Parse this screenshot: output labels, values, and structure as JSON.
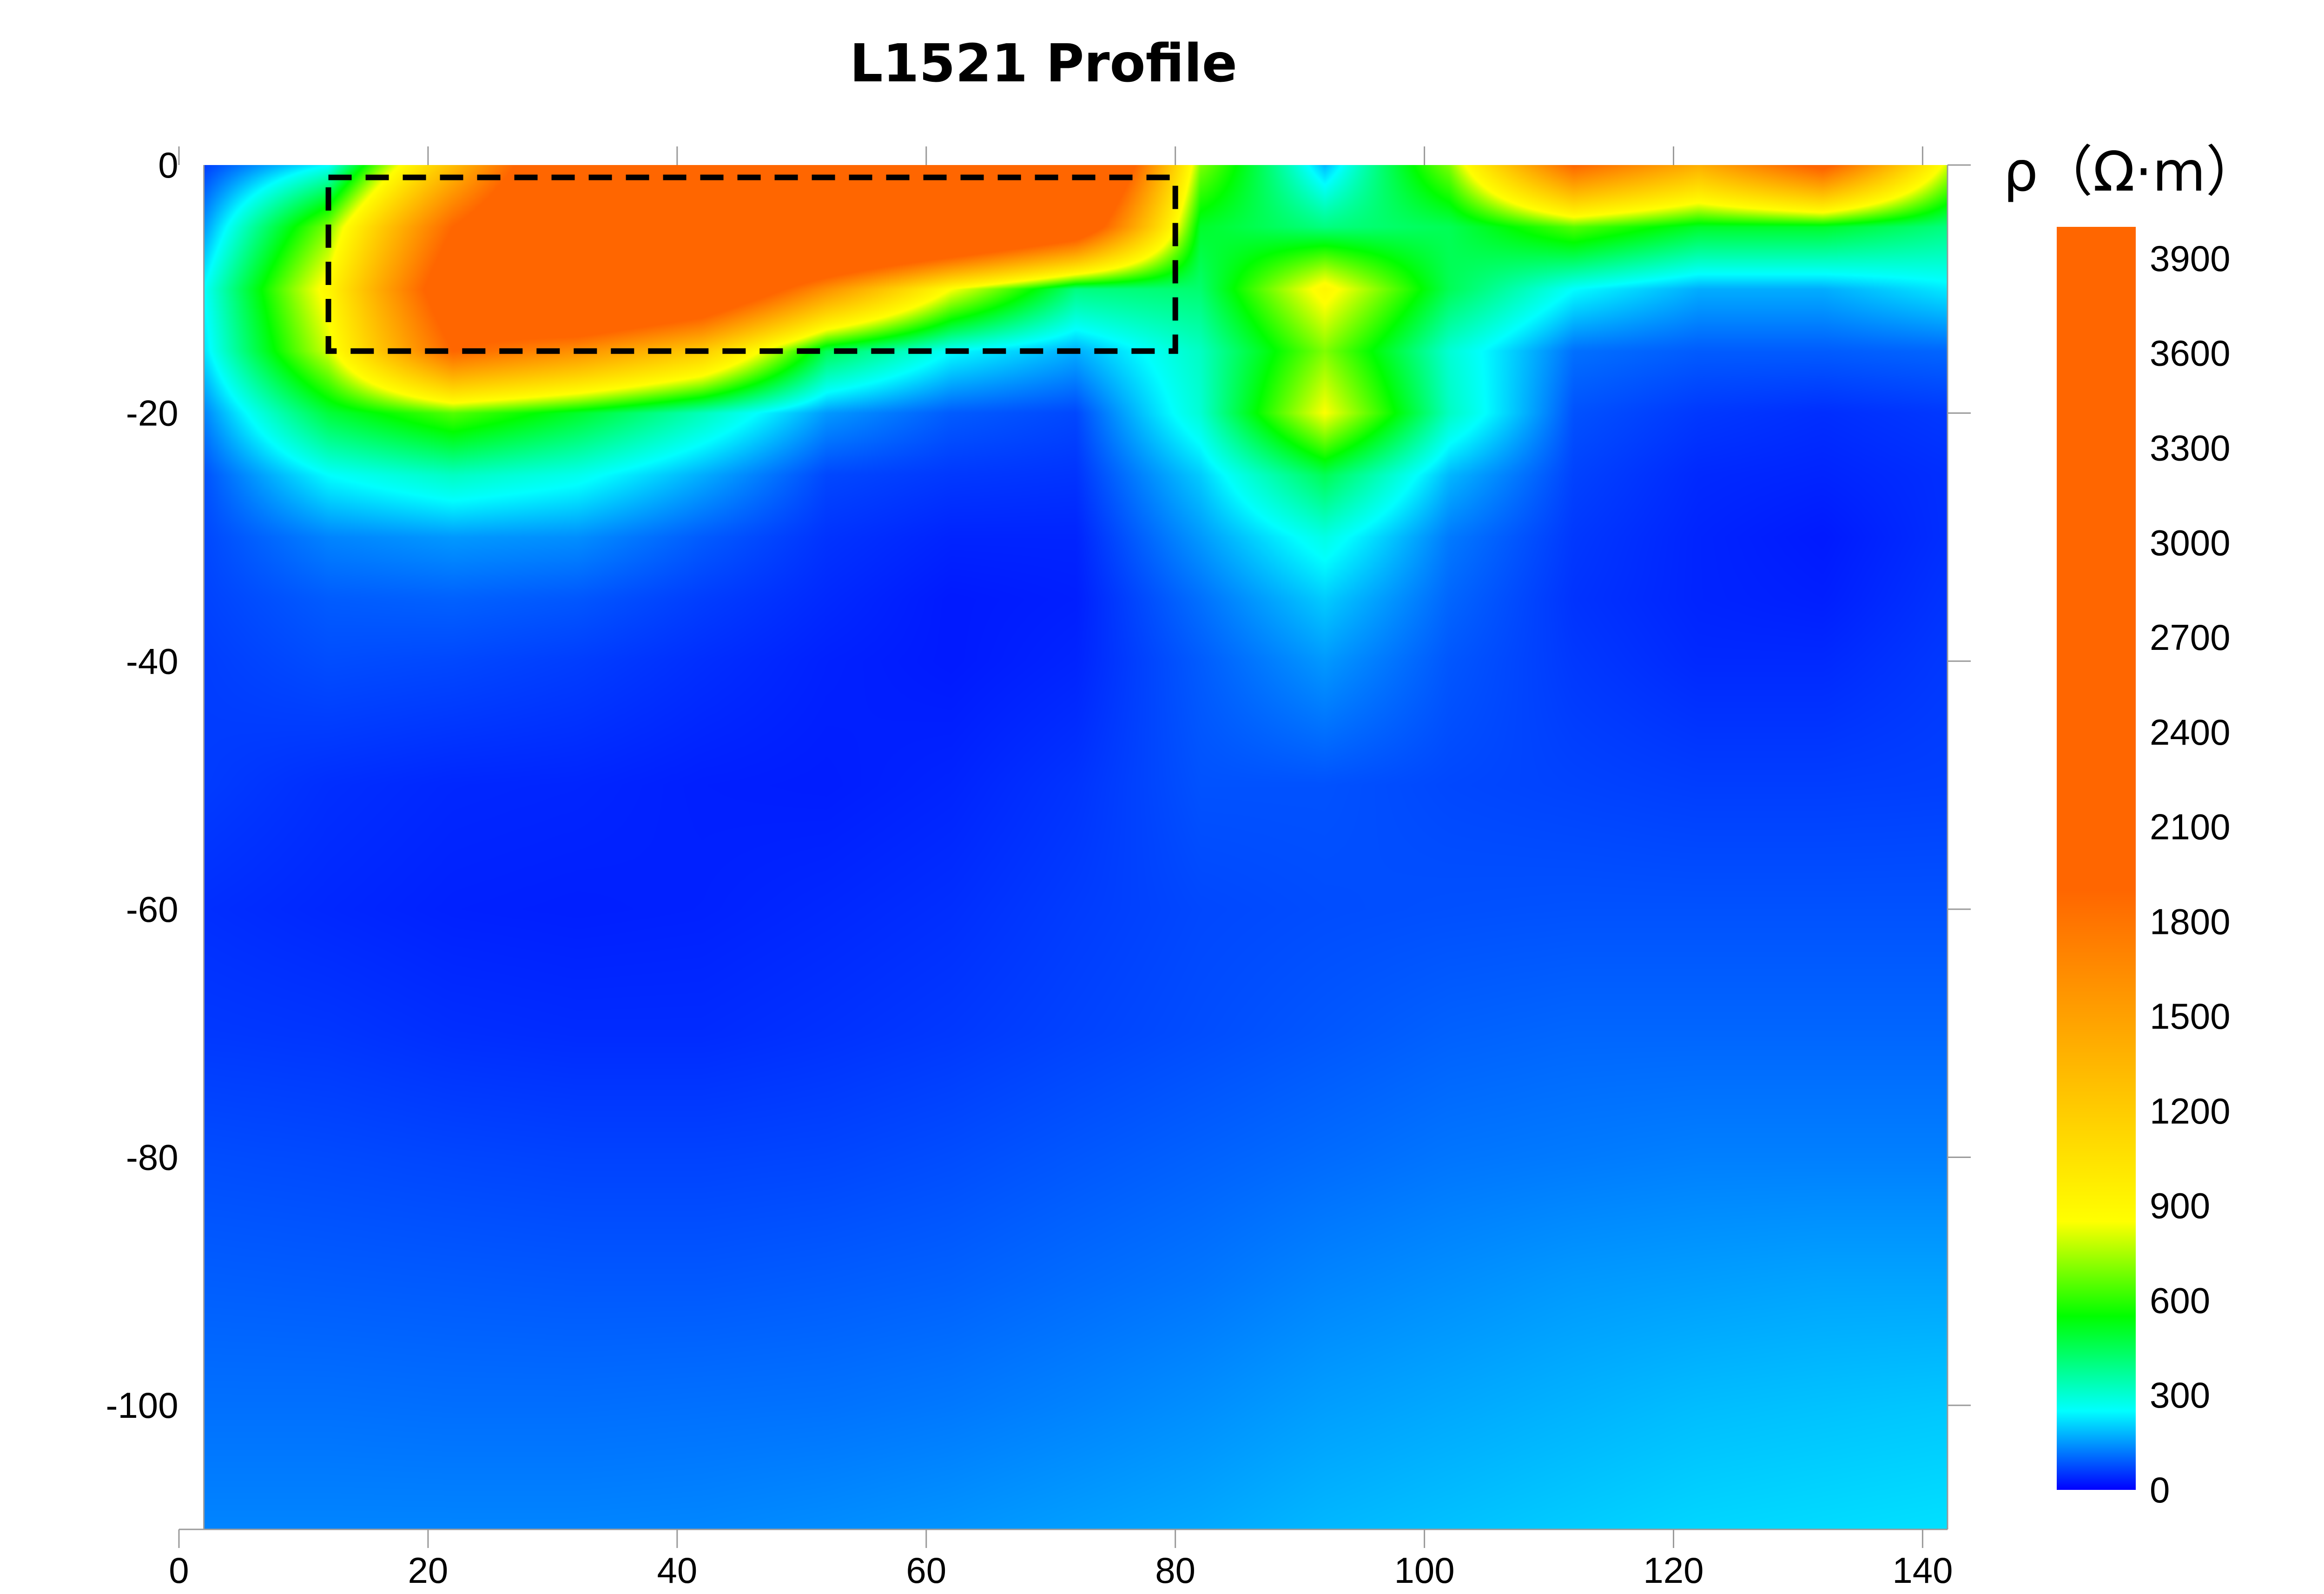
{
  "chart_data": {
    "type": "heatmap",
    "title": "L1521 Profile",
    "xlabel": "",
    "ylabel": "",
    "xlim": [
      0,
      142
    ],
    "ylim": [
      -110,
      0
    ],
    "x_ticks": [
      0,
      20,
      40,
      60,
      80,
      100,
      120,
      140
    ],
    "y_ticks": [
      0,
      -20,
      -40,
      -60,
      -80,
      -100
    ],
    "x_tick_labels": [
      "0",
      "20",
      "40",
      "60",
      "80",
      "100",
      "120",
      "140"
    ],
    "y_tick_labels": [
      "0",
      "-20",
      "-40",
      "-60",
      "-80",
      "-100"
    ],
    "data_extent": {
      "x": [
        2,
        142
      ],
      "y": [
        -110,
        0
      ]
    },
    "grid": false,
    "colorbar": {
      "label": "ρ（Ω·m）",
      "range": [
        0,
        4000
      ],
      "ticks": [
        0,
        300,
        600,
        900,
        1200,
        1500,
        1800,
        2100,
        2400,
        2700,
        3000,
        3300,
        3600,
        3900
      ],
      "tick_labels": [
        "0",
        "300",
        "600",
        "900",
        "1200",
        "1500",
        "1800",
        "2100",
        "2400",
        "2700",
        "3000",
        "3300",
        "3600",
        "3900"
      ],
      "stops": [
        {
          "value": 0,
          "color": "#0000ff"
        },
        {
          "value": 250,
          "color": "#00ffff"
        },
        {
          "value": 550,
          "color": "#00ff00"
        },
        {
          "value": 850,
          "color": "#ffff00"
        },
        {
          "value": 1900,
          "color": "#ff6600"
        },
        {
          "value": 4000,
          "color": "#ff6600"
        }
      ]
    },
    "x": [
      2,
      12,
      22,
      32,
      42,
      52,
      62,
      72,
      82,
      92,
      102,
      112,
      122,
      132,
      142
    ],
    "y": [
      0,
      -5,
      -10,
      -15,
      -20,
      -25,
      -30,
      -35,
      -40,
      -50,
      -60,
      -70,
      -80,
      -90,
      -100,
      -110
    ],
    "z": [
      [
        60,
        250,
        1300,
        2500,
        3200,
        3200,
        3100,
        3000,
        700,
        180,
        700,
        1900,
        1400,
        2000,
        800
      ],
      [
        150,
        700,
        1900,
        2700,
        3300,
        3200,
        2900,
        2300,
        500,
        400,
        450,
        650,
        500,
        500,
        400
      ],
      [
        250,
        900,
        2200,
        2900,
        2500,
        1600,
        850,
        400,
        420,
        900,
        450,
        250,
        170,
        170,
        230
      ],
      [
        220,
        800,
        1900,
        1600,
        1200,
        450,
        250,
        170,
        320,
        700,
        300,
        110,
        90,
        90,
        100
      ],
      [
        130,
        480,
        650,
        500,
        330,
        150,
        90,
        70,
        300,
        850,
        320,
        80,
        55,
        45,
        55
      ],
      [
        80,
        250,
        320,
        270,
        170,
        70,
        55,
        50,
        200,
        450,
        180,
        65,
        40,
        35,
        45
      ],
      [
        70,
        130,
        150,
        140,
        90,
        50,
        35,
        35,
        150,
        280,
        120,
        55,
        35,
        25,
        45
      ],
      [
        65,
        90,
        95,
        85,
        60,
        40,
        25,
        30,
        110,
        200,
        100,
        50,
        35,
        30,
        50
      ],
      [
        60,
        75,
        70,
        60,
        45,
        32,
        25,
        35,
        90,
        150,
        85,
        55,
        40,
        40,
        55
      ],
      [
        58,
        45,
        38,
        36,
        30,
        28,
        35,
        50,
        80,
        80,
        70,
        65,
        60,
        60,
        62
      ],
      [
        45,
        38,
        32,
        30,
        32,
        38,
        45,
        58,
        70,
        75,
        78,
        80,
        80,
        80,
        80
      ],
      [
        55,
        52,
        45,
        42,
        42,
        48,
        55,
        65,
        75,
        85,
        95,
        100,
        100,
        100,
        100
      ],
      [
        75,
        72,
        68,
        65,
        65,
        68,
        75,
        85,
        95,
        105,
        115,
        120,
        125,
        125,
        125
      ],
      [
        92,
        90,
        88,
        86,
        86,
        90,
        95,
        105,
        115,
        130,
        140,
        150,
        155,
        160,
        160
      ],
      [
        110,
        110,
        108,
        108,
        110,
        112,
        118,
        128,
        140,
        155,
        165,
        175,
        185,
        190,
        195
      ],
      [
        130,
        130,
        130,
        130,
        132,
        138,
        145,
        155,
        165,
        180,
        190,
        200,
        210,
        215,
        220
      ]
    ],
    "annotations": [
      {
        "type": "dashed-rectangle",
        "x": [
          12,
          80
        ],
        "y": [
          -15,
          -1
        ]
      }
    ]
  }
}
